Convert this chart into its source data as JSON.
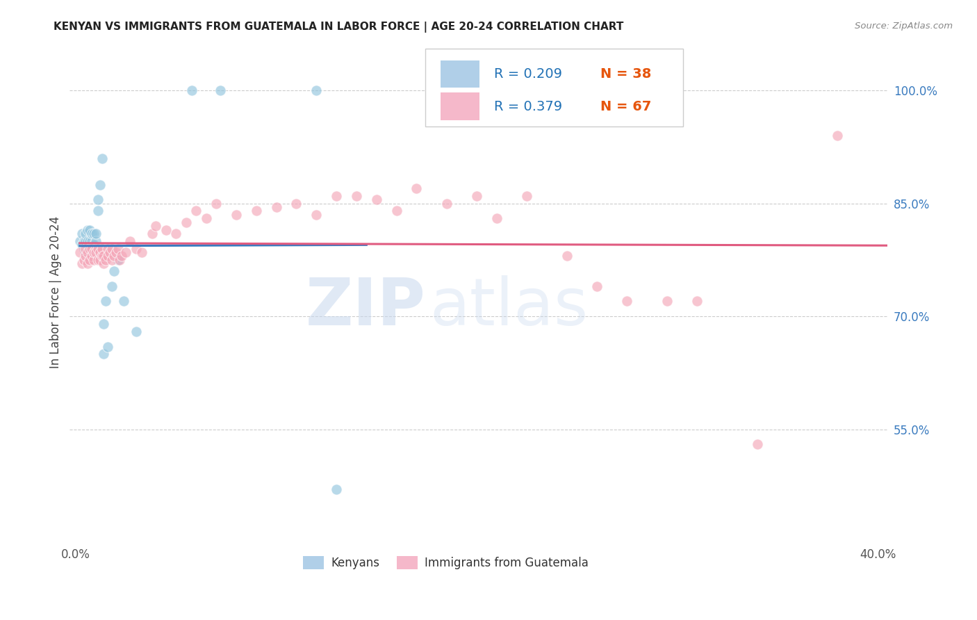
{
  "title": "KENYAN VS IMMIGRANTS FROM GUATEMALA IN LABOR FORCE | AGE 20-24 CORRELATION CHART",
  "source": "Source: ZipAtlas.com",
  "ylabel": "In Labor Force | Age 20-24",
  "xlim": [
    -0.003,
    0.405
  ],
  "ylim": [
    0.4,
    1.065
  ],
  "xtick_positions": [
    0.0,
    0.05,
    0.1,
    0.15,
    0.2,
    0.25,
    0.3,
    0.35,
    0.4
  ],
  "xtick_labels": [
    "0.0%",
    "",
    "",
    "",
    "",
    "",
    "",
    "",
    "40.0%"
  ],
  "ytick_positions": [
    0.55,
    0.7,
    0.85,
    1.0
  ],
  "ytick_labels_right": [
    "55.0%",
    "70.0%",
    "85.0%",
    "100.0%"
  ],
  "blue_color": "#92c5de",
  "pink_color": "#f4a6b8",
  "trend_blue": "#3a7bbf",
  "trend_pink": "#e05b80",
  "watermark_zip": "ZIP",
  "watermark_atlas": "atlas",
  "legend_r1": "R = 0.209",
  "legend_n1": "N = 38",
  "legend_r2": "R = 0.379",
  "legend_n2": "N = 67",
  "legend_color_r": "#2171b5",
  "legend_color_n": "#e6550d",
  "kenyan_x": [
    0.002,
    0.003,
    0.003,
    0.004,
    0.004,
    0.005,
    0.005,
    0.005,
    0.006,
    0.006,
    0.006,
    0.007,
    0.007,
    0.007,
    0.008,
    0.008,
    0.008,
    0.009,
    0.009,
    0.01,
    0.01,
    0.011,
    0.011,
    0.012,
    0.013,
    0.014,
    0.014,
    0.015,
    0.016,
    0.018,
    0.019,
    0.021,
    0.024,
    0.03,
    0.058,
    0.072,
    0.12,
    0.13
  ],
  "kenyan_y": [
    0.8,
    0.795,
    0.81,
    0.79,
    0.8,
    0.785,
    0.8,
    0.81,
    0.79,
    0.8,
    0.815,
    0.785,
    0.8,
    0.815,
    0.795,
    0.8,
    0.81,
    0.795,
    0.81,
    0.8,
    0.81,
    0.84,
    0.855,
    0.875,
    0.91,
    0.65,
    0.69,
    0.72,
    0.66,
    0.74,
    0.76,
    0.775,
    0.72,
    0.68,
    1.0,
    1.0,
    1.0,
    0.47
  ],
  "guatemala_x": [
    0.002,
    0.003,
    0.004,
    0.005,
    0.005,
    0.006,
    0.006,
    0.007,
    0.007,
    0.008,
    0.008,
    0.009,
    0.009,
    0.01,
    0.01,
    0.011,
    0.011,
    0.012,
    0.012,
    0.013,
    0.013,
    0.014,
    0.014,
    0.015,
    0.016,
    0.016,
    0.017,
    0.018,
    0.018,
    0.019,
    0.02,
    0.021,
    0.022,
    0.023,
    0.025,
    0.027,
    0.03,
    0.033,
    0.038,
    0.04,
    0.045,
    0.05,
    0.055,
    0.06,
    0.065,
    0.07,
    0.08,
    0.09,
    0.1,
    0.11,
    0.12,
    0.13,
    0.14,
    0.15,
    0.16,
    0.17,
    0.185,
    0.2,
    0.21,
    0.225,
    0.245,
    0.26,
    0.275,
    0.295,
    0.31,
    0.34,
    0.38
  ],
  "guatemala_y": [
    0.785,
    0.77,
    0.775,
    0.78,
    0.79,
    0.77,
    0.785,
    0.775,
    0.79,
    0.78,
    0.79,
    0.775,
    0.785,
    0.79,
    0.785,
    0.775,
    0.79,
    0.775,
    0.785,
    0.78,
    0.79,
    0.77,
    0.78,
    0.775,
    0.79,
    0.78,
    0.785,
    0.79,
    0.775,
    0.78,
    0.785,
    0.79,
    0.775,
    0.78,
    0.785,
    0.8,
    0.79,
    0.785,
    0.81,
    0.82,
    0.815,
    0.81,
    0.825,
    0.84,
    0.83,
    0.85,
    0.835,
    0.84,
    0.845,
    0.85,
    0.835,
    0.86,
    0.86,
    0.855,
    0.84,
    0.87,
    0.85,
    0.86,
    0.83,
    0.86,
    0.78,
    0.74,
    0.72,
    0.72,
    0.72,
    0.53,
    0.94
  ]
}
